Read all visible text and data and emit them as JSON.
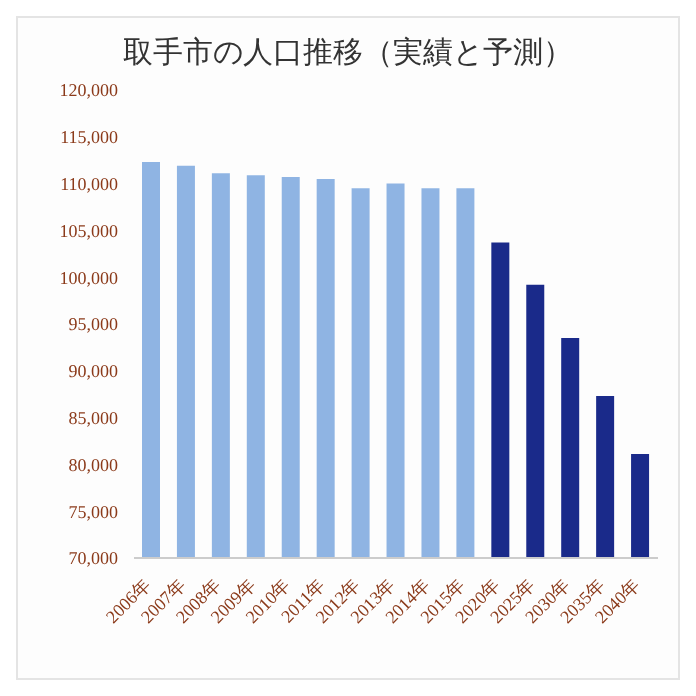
{
  "chart_data": {
    "type": "bar",
    "title": "取手市の人口推移（実績と予測）",
    "categories": [
      "2006年",
      "2007年",
      "2008年",
      "2009年",
      "2010年",
      "2011年",
      "2012年",
      "2013年",
      "2014年",
      "2015年",
      "2020年",
      "2025年",
      "2030年",
      "2035年",
      "2040年"
    ],
    "values": [
      112300,
      111900,
      111100,
      110900,
      110700,
      110500,
      109500,
      110000,
      109500,
      109500,
      103700,
      99200,
      93500,
      87300,
      81100
    ],
    "colors": [
      "#8fb4e3",
      "#8fb4e3",
      "#8fb4e3",
      "#8fb4e3",
      "#8fb4e3",
      "#8fb4e3",
      "#8fb4e3",
      "#8fb4e3",
      "#8fb4e3",
      "#8fb4e3",
      "#1a2a8a",
      "#1a2a8a",
      "#1a2a8a",
      "#1a2a8a",
      "#1a2a8a"
    ],
    "ylim": [
      70000,
      120000
    ],
    "yticks": [
      {
        "value": 70000,
        "label": "70,000"
      },
      {
        "value": 75000,
        "label": "75,000"
      },
      {
        "value": 80000,
        "label": "80,000"
      },
      {
        "value": 85000,
        "label": "85,000"
      },
      {
        "value": 90000,
        "label": "90,000"
      },
      {
        "value": 95000,
        "label": "95,000"
      },
      {
        "value": 100000,
        "label": "100,000"
      },
      {
        "value": 105000,
        "label": "105,000"
      },
      {
        "value": 110000,
        "label": "110,000"
      },
      {
        "value": 115000,
        "label": "115,000"
      },
      {
        "value": 120000,
        "label": "120,000"
      }
    ],
    "grid": false,
    "legend": false
  }
}
